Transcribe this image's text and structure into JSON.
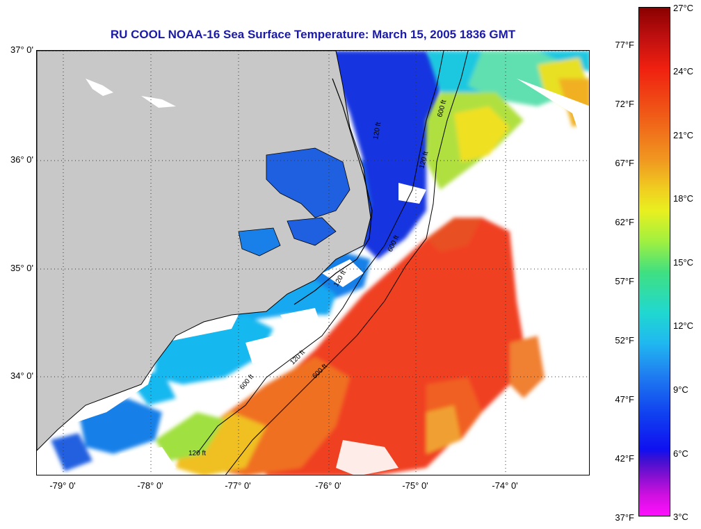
{
  "title": "RU COOL  NOAA-16  Sea Surface Temperature:  March 15, 2005 1836 GMT",
  "map": {
    "lat_labels": [
      "37° 0'",
      "36° 0'",
      "35° 0'",
      "34° 0'"
    ],
    "lon_labels": [
      "-79° 0'",
      "-78° 0'",
      "-77° 0'",
      "-76° 0'",
      "-75° 0'",
      "-74° 0'"
    ],
    "contour_labels": [
      "120 ft",
      "600 ft",
      "120 ft",
      "600 ft",
      "120 ft",
      "600 ft",
      "120 ft",
      "600 ft",
      "120 ft"
    ],
    "colors": {
      "land": "#c8c8c8",
      "cloud": "#ffffff",
      "cold": "#1030e8",
      "cool": "#18b8f0",
      "mild": "#80e060",
      "warm_yellow": "#f0e020",
      "warm_orange": "#f08820",
      "hot_red": "#f03818"
    }
  },
  "colorbar": {
    "celsius": [
      "27°C",
      "24°C",
      "21°C",
      "18°C",
      "15°C",
      "12°C",
      "9°C",
      "6°C",
      "3°C"
    ],
    "fahrenheit": [
      "77°F",
      "72°F",
      "67°F",
      "62°F",
      "57°F",
      "52°F",
      "47°F",
      "42°F",
      "37°F"
    ]
  }
}
